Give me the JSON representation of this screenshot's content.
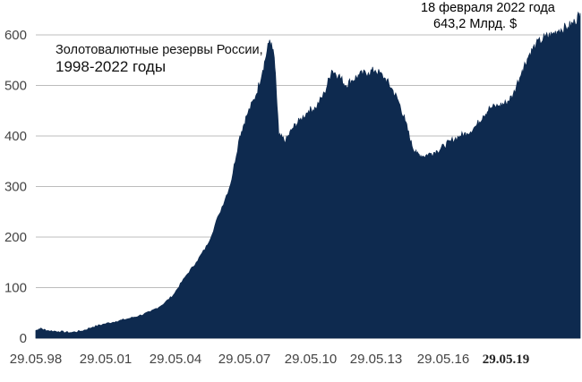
{
  "chart_data": {
    "type": "area",
    "title": "Золотовалютные резервы России,",
    "subtitle": "1998-2022 годы",
    "xlabel": "",
    "ylabel": "",
    "ylim": [
      0,
      620
    ],
    "yticks": [
      0,
      100,
      200,
      300,
      400,
      500,
      600
    ],
    "xticks": [
      "29.05.98",
      "29.05.01",
      "29.05.04",
      "29.05.07",
      "29.05.10",
      "29.05.13",
      "29.05.16",
      "29.05.19"
    ],
    "grid": true,
    "fill_color": "#0e2a4f",
    "annotation": {
      "line1": "18  февраля 2022 года",
      "line2": "643,2 Млрд. $"
    },
    "series": [
      {
        "x": [
          1998.41,
          1998.6,
          1998.9,
          1999.4,
          1999.9,
          2000.4,
          2000.9,
          2001.4,
          2001.9,
          2002.4,
          2002.9,
          2003.4,
          2003.9,
          2004.4,
          2004.9,
          2005.4,
          2005.9,
          2006.4,
          2006.9,
          2007.3,
          2007.6,
          2008.0,
          2008.3,
          2008.6,
          2008.8,
          2009.0,
          2009.3,
          2009.6,
          2009.9,
          2010.3,
          2010.6,
          2011.0,
          2011.3,
          2011.6,
          2011.9,
          2012.2,
          2012.5,
          2012.9,
          2013.2,
          2013.6,
          2013.9,
          2014.2,
          2014.5,
          2014.8,
          2015.0,
          2015.3,
          2015.6,
          2015.9,
          2016.2,
          2016.5,
          2016.9,
          2017.2,
          2017.6,
          2017.9,
          2018.2,
          2018.6,
          2018.9,
          2019.2,
          2019.6,
          2019.9,
          2020.2,
          2020.6,
          2020.9,
          2021.2,
          2021.6,
          2021.9,
          2022.13
        ],
        "values": [
          15,
          19,
          15,
          13,
          11,
          14,
          22,
          28,
          33,
          38,
          44,
          52,
          65,
          85,
          120,
          150,
          185,
          245,
          305,
          400,
          440,
          480,
          530,
          590,
          555,
          400,
          390,
          415,
          430,
          450,
          455,
          485,
          530,
          520,
          500,
          510,
          520,
          525,
          530,
          515,
          495,
          470,
          430,
          380,
          365,
          360,
          365,
          370,
          380,
          390,
          400,
          405,
          420,
          440,
          455,
          460,
          465,
          480,
          530,
          560,
          580,
          595,
          600,
          610,
          615,
          625,
          643
        ]
      }
    ]
  }
}
